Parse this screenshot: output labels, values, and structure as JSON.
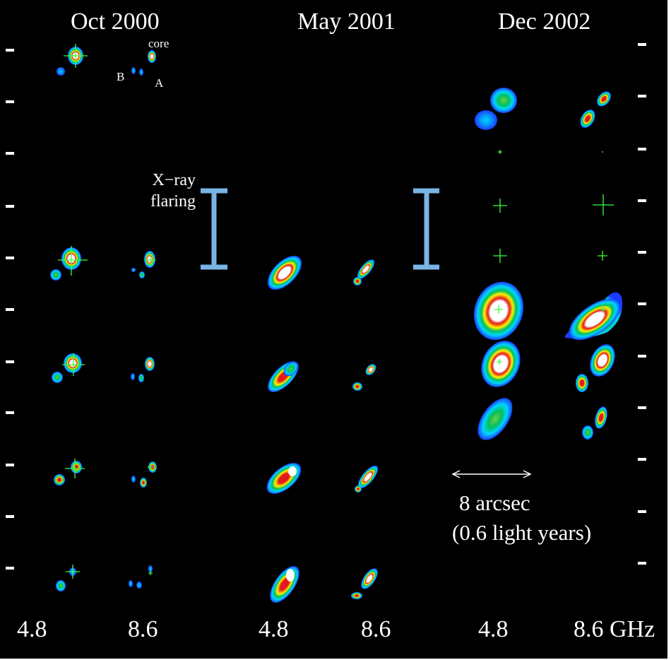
{
  "epochs": [
    "Oct 2000",
    "May 2001",
    "Dec 2002"
  ],
  "frequencies": [
    "4.8",
    "8.6",
    "4.8",
    "8.6",
    "4.8",
    "8.6 GHz"
  ],
  "component_labels": {
    "core": "core",
    "a": "A",
    "b": "B"
  },
  "xray_label": [
    "X−ray",
    "flaring"
  ],
  "scale_bar": {
    "line1": "8 arcsec",
    "line2": "(0.6 light years)"
  },
  "colors": {
    "background": "#000000",
    "xray_bar": "#7ab3e6",
    "marker": "#39ff39",
    "contour_white": "#ffffff",
    "contour_red": "#e31a1c",
    "contour_yellow": "#fff200",
    "contour_green": "#00c060",
    "contour_cyan": "#00d6ff",
    "contour_blue": "#1a3cff"
  }
}
